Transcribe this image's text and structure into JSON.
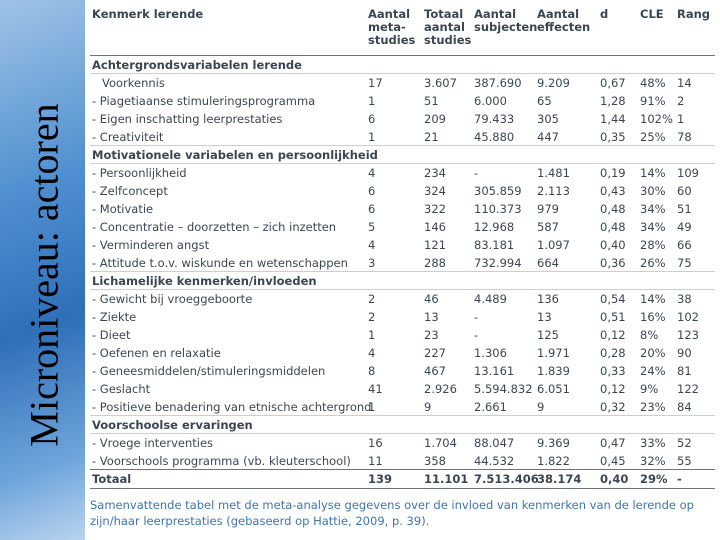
{
  "slide_title": "Microniveau: actoren",
  "table": {
    "header": [
      "Kenmerk lerende",
      "Aantal meta-studies",
      "Totaal aantal studies",
      "Aantal subjecten",
      "Aantal effecten",
      "d",
      "CLE",
      "Rang"
    ],
    "sections": [
      {
        "title": "Achtergrondsvariabelen lerende",
        "rows": [
          [
            "Voorkennis",
            "17",
            "3.607",
            "387.690",
            "9.209",
            "0,67",
            "48%",
            "14"
          ],
          [
            "- Piagetiaanse stimuleringsprogramma",
            "1",
            "51",
            "6.000",
            "65",
            "1,28",
            "91%",
            "2"
          ],
          [
            "- Eigen inschatting leerprestaties",
            "6",
            "209",
            "79.433",
            "305",
            "1,44",
            "102%",
            "1"
          ],
          [
            "- Creativiteit",
            "1",
            "21",
            "45.880",
            "447",
            "0,35",
            "25%",
            "78"
          ]
        ]
      },
      {
        "title": "Motivationele variabelen en persoonlijkheid",
        "rows": [
          [
            "- Persoonlijkheid",
            "4",
            "234",
            "-",
            "1.481",
            "0,19",
            "14%",
            "109"
          ],
          [
            "- Zelfconcept",
            "6",
            "324",
            "305.859",
            "2.113",
            "0,43",
            "30%",
            "60"
          ],
          [
            "- Motivatie",
            "6",
            "322",
            "110.373",
            "979",
            "0,48",
            "34%",
            "51"
          ],
          [
            "- Concentratie – doorzetten – zich inzetten",
            "5",
            "146",
            "12.968",
            "587",
            "0,48",
            "34%",
            "49"
          ],
          [
            "- Verminderen angst",
            "4",
            "121",
            "83.181",
            "1.097",
            "0,40",
            "28%",
            "66"
          ],
          [
            "- Attitude t.o.v. wiskunde en wetenschappen",
            "3",
            "288",
            "732.994",
            "664",
            "0,36",
            "26%",
            "75"
          ]
        ]
      },
      {
        "title": "Lichamelijke kenmerken/invloeden",
        "rows": [
          [
            "- Gewicht bij vroeggeboorte",
            "2",
            "46",
            "4.489",
            "136",
            "0,54",
            "14%",
            "38"
          ],
          [
            "- Ziekte",
            "2",
            "13",
            "-",
            "13",
            "0,51",
            "16%",
            "102"
          ],
          [
            "- Dieet",
            "1",
            "23",
            "-",
            "125",
            "0,12",
            "8%",
            "123"
          ],
          [
            "- Oefenen en relaxatie",
            "4",
            "227",
            "1.306",
            "1.971",
            "0,28",
            "20%",
            "90"
          ],
          [
            "- Geneesmiddelen/stimuleringsmiddelen",
            "8",
            "467",
            "13.161",
            "1.839",
            "0,33",
            "24%",
            "81"
          ],
          [
            "- Geslacht",
            "41",
            "2.926",
            "5.594.832",
            "6.051",
            "0,12",
            "9%",
            "122"
          ],
          [
            "- Positieve benadering van etnische achtergrond",
            "1",
            "9",
            "2.661",
            "9",
            "0,32",
            "23%",
            "84"
          ]
        ]
      },
      {
        "title": "Voorschoolse ervaringen",
        "rows": [
          [
            "- Vroege interventies",
            "16",
            "1.704",
            "88.047",
            "9.369",
            "0,47",
            "33%",
            "52"
          ],
          [
            "- Voorschools programma (vb. kleuterschool)",
            "11",
            "358",
            "44.532",
            "1.822",
            "0,45",
            "32%",
            "55"
          ]
        ]
      }
    ],
    "total": [
      "Totaal",
      "139",
      "11.101",
      "7.513.406",
      "38.174",
      "0,40",
      "29%",
      "-"
    ]
  },
  "caption": "Samenvattende tabel met de meta-analyse gegevens over de invloed van kenmerken van de lerende op zijn/haar leerprestaties (gebaseerd op Hattie, 2009, p. 39)."
}
